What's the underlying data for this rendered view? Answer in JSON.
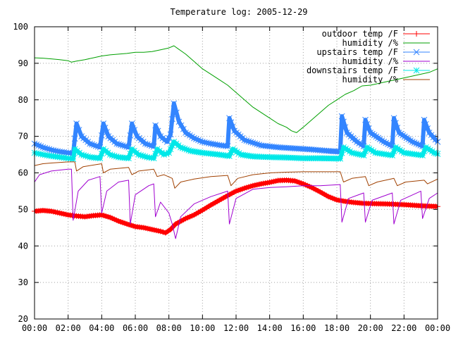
{
  "chart_data": {
    "type": "line",
    "title": "Temperature log: 2005-12-29",
    "xlabel": "",
    "ylabel": "",
    "xlim": [
      0,
      24
    ],
    "ylim": [
      20,
      100
    ],
    "grid": true,
    "legend_position": "top-right",
    "x_ticks": [
      "00:00",
      "02:00",
      "04:00",
      "06:00",
      "08:00",
      "10:00",
      "12:00",
      "14:00",
      "16:00",
      "18:00",
      "20:00",
      "22:00",
      "00:00"
    ],
    "y_ticks": [
      20,
      30,
      40,
      50,
      60,
      70,
      80,
      90,
      100
    ],
    "series": [
      {
        "name": "outdoor temp /F",
        "color": "#ff0000",
        "marker": "plus",
        "width": 6,
        "points": [
          [
            0,
            49.5
          ],
          [
            0.5,
            49.7
          ],
          [
            1,
            49.5
          ],
          [
            1.5,
            49
          ],
          [
            2,
            48.5
          ],
          [
            2.5,
            48.2
          ],
          [
            3,
            48
          ],
          [
            3.5,
            48.3
          ],
          [
            4,
            48.5
          ],
          [
            4.5,
            47.8
          ],
          [
            5,
            46.8
          ],
          [
            5.5,
            46
          ],
          [
            6,
            45.3
          ],
          [
            6.5,
            45
          ],
          [
            7,
            44.5
          ],
          [
            7.5,
            44
          ],
          [
            7.8,
            43.6
          ],
          [
            8.1,
            44.5
          ],
          [
            8.4,
            46
          ],
          [
            9,
            47.5
          ],
          [
            9.5,
            48.5
          ],
          [
            10,
            49.8
          ],
          [
            10.5,
            51.2
          ],
          [
            11,
            52.5
          ],
          [
            11.5,
            53.8
          ],
          [
            12,
            55
          ],
          [
            12.5,
            55.8
          ],
          [
            13,
            56.5
          ],
          [
            13.5,
            57
          ],
          [
            14,
            57.4
          ],
          [
            14.5,
            57.9
          ],
          [
            15,
            58
          ],
          [
            15.5,
            57.8
          ],
          [
            16,
            57
          ],
          [
            16.5,
            56
          ],
          [
            17,
            54.8
          ],
          [
            17.5,
            53.5
          ],
          [
            18,
            52.6
          ],
          [
            18.5,
            52.2
          ],
          [
            19,
            51.9
          ],
          [
            19.5,
            51.7
          ],
          [
            20,
            51.6
          ],
          [
            21,
            51.5
          ],
          [
            22,
            51.3
          ],
          [
            23,
            51
          ],
          [
            24,
            50.8
          ]
        ]
      },
      {
        "name": "humidity /%",
        "color": "#00a000",
        "points": [
          [
            0,
            91.5
          ],
          [
            0.5,
            91.4
          ],
          [
            1,
            91.2
          ],
          [
            1.5,
            91
          ],
          [
            2,
            90.7
          ],
          [
            2.2,
            90.3
          ],
          [
            2.5,
            90.6
          ],
          [
            3,
            91
          ],
          [
            3.5,
            91.5
          ],
          [
            4,
            92
          ],
          [
            4.5,
            92.3
          ],
          [
            5,
            92.5
          ],
          [
            5.5,
            92.7
          ],
          [
            6,
            93
          ],
          [
            6.5,
            93
          ],
          [
            7,
            93.2
          ],
          [
            7.5,
            93.7
          ],
          [
            8,
            94.2
          ],
          [
            8.3,
            94.8
          ],
          [
            8.6,
            93.8
          ],
          [
            9,
            92.5
          ],
          [
            9.5,
            90.5
          ],
          [
            10,
            88.5
          ],
          [
            10.5,
            87
          ],
          [
            11,
            85.5
          ],
          [
            11.5,
            84
          ],
          [
            12,
            82
          ],
          [
            12.5,
            80
          ],
          [
            13,
            78
          ],
          [
            13.5,
            76.5
          ],
          [
            14,
            75
          ],
          [
            14.5,
            73.5
          ],
          [
            15,
            72.5
          ],
          [
            15.3,
            71.5
          ],
          [
            15.6,
            71
          ],
          [
            16,
            72.5
          ],
          [
            16.5,
            74.5
          ],
          [
            17,
            76.5
          ],
          [
            17.5,
            78.5
          ],
          [
            18,
            80
          ],
          [
            18.5,
            81.5
          ],
          [
            19,
            82.5
          ],
          [
            19.5,
            83.8
          ],
          [
            20,
            84
          ],
          [
            20.5,
            84.5
          ],
          [
            21,
            85
          ],
          [
            21.5,
            85.5
          ],
          [
            22,
            86
          ],
          [
            22.5,
            86.5
          ],
          [
            23,
            87
          ],
          [
            23.5,
            87.5
          ],
          [
            24,
            88.5
          ]
        ]
      },
      {
        "name": "upstairs temp /F",
        "color": "#3385ff",
        "marker": "x",
        "width": 6,
        "points": [
          [
            0,
            68
          ],
          [
            0.5,
            67
          ],
          [
            1,
            66.3
          ],
          [
            1.5,
            65.8
          ],
          [
            2,
            65.5
          ],
          [
            2.3,
            65.3
          ],
          [
            2.5,
            73.5
          ],
          [
            2.8,
            70
          ],
          [
            3.3,
            68
          ],
          [
            3.9,
            67
          ],
          [
            4.1,
            73.5
          ],
          [
            4.4,
            70
          ],
          [
            4.9,
            68
          ],
          [
            5.6,
            67
          ],
          [
            5.8,
            73.5
          ],
          [
            6.1,
            70
          ],
          [
            6.6,
            68
          ],
          [
            7.1,
            67.2
          ],
          [
            7.2,
            73
          ],
          [
            7.5,
            70
          ],
          [
            7.9,
            68.5
          ],
          [
            8.1,
            70.5
          ],
          [
            8.3,
            79
          ],
          [
            8.6,
            74
          ],
          [
            9,
            71
          ],
          [
            9.5,
            69.5
          ],
          [
            10,
            68.5
          ],
          [
            10.5,
            68
          ],
          [
            11,
            67.6
          ],
          [
            11.5,
            67.3
          ],
          [
            11.6,
            75
          ],
          [
            11.9,
            71.5
          ],
          [
            12.5,
            69
          ],
          [
            13.5,
            67.5
          ],
          [
            14.5,
            67
          ],
          [
            15.5,
            66.7
          ],
          [
            16.5,
            66.4
          ],
          [
            17.5,
            66
          ],
          [
            18.2,
            65.8
          ],
          [
            18.3,
            75.5
          ],
          [
            18.6,
            71
          ],
          [
            19.2,
            68.5
          ],
          [
            19.6,
            67.3
          ],
          [
            19.7,
            74.5
          ],
          [
            20,
            71
          ],
          [
            20.8,
            68.5
          ],
          [
            21.3,
            67.3
          ],
          [
            21.4,
            75
          ],
          [
            21.7,
            71
          ],
          [
            22.5,
            68.5
          ],
          [
            23.1,
            67.3
          ],
          [
            23.2,
            74.5
          ],
          [
            23.5,
            71
          ],
          [
            24,
            68.5
          ]
        ]
      },
      {
        "name": "humidity /%",
        "color": "#a000d0",
        "points": [
          [
            0,
            57.5
          ],
          [
            0.3,
            59.5
          ],
          [
            1,
            60.5
          ],
          [
            2,
            61
          ],
          [
            2.2,
            61
          ],
          [
            2.3,
            47
          ],
          [
            2.6,
            55
          ],
          [
            3.2,
            58
          ],
          [
            3.9,
            59
          ],
          [
            4,
            49
          ],
          [
            4.3,
            55
          ],
          [
            5,
            57.5
          ],
          [
            5.6,
            58
          ],
          [
            5.7,
            46
          ],
          [
            6,
            54
          ],
          [
            6.8,
            56.5
          ],
          [
            7.1,
            57
          ],
          [
            7.2,
            48
          ],
          [
            7.5,
            52
          ],
          [
            8,
            49
          ],
          [
            8.2,
            46
          ],
          [
            8.4,
            42
          ],
          [
            8.7,
            48
          ],
          [
            9.5,
            51.5
          ],
          [
            10.5,
            53.5
          ],
          [
            11.5,
            55
          ],
          [
            11.6,
            46
          ],
          [
            12,
            53
          ],
          [
            13,
            55.5
          ],
          [
            14,
            56
          ],
          [
            15,
            56.2
          ],
          [
            16,
            56.5
          ],
          [
            17,
            56.5
          ],
          [
            18.2,
            56.8
          ],
          [
            18.3,
            46.5
          ],
          [
            18.7,
            53
          ],
          [
            19.6,
            54.5
          ],
          [
            19.7,
            46.5
          ],
          [
            20.1,
            52.5
          ],
          [
            21.3,
            54.5
          ],
          [
            21.4,
            46
          ],
          [
            21.8,
            52.5
          ],
          [
            23,
            55
          ],
          [
            23.1,
            47.5
          ],
          [
            23.5,
            53
          ],
          [
            24,
            54.5
          ]
        ]
      },
      {
        "name": "downstairs temp /F",
        "color": "#00e8e8",
        "marker": "star",
        "width": 6,
        "points": [
          [
            0,
            65.5
          ],
          [
            0.5,
            65
          ],
          [
            1,
            64.6
          ],
          [
            1.5,
            64.3
          ],
          [
            2,
            64
          ],
          [
            2.3,
            63.8
          ],
          [
            2.4,
            66.5
          ],
          [
            2.8,
            65
          ],
          [
            3.3,
            64.3
          ],
          [
            3.9,
            64
          ],
          [
            4.1,
            66.5
          ],
          [
            4.5,
            65
          ],
          [
            5,
            64.3
          ],
          [
            5.6,
            64
          ],
          [
            5.8,
            66.5
          ],
          [
            6.2,
            65
          ],
          [
            6.7,
            64.3
          ],
          [
            7.1,
            64
          ],
          [
            7.3,
            66.5
          ],
          [
            7.7,
            65
          ],
          [
            8,
            65.5
          ],
          [
            8.3,
            68.5
          ],
          [
            8.7,
            67
          ],
          [
            9.3,
            66
          ],
          [
            10,
            65.5
          ],
          [
            11,
            65
          ],
          [
            11.6,
            64.6
          ],
          [
            11.8,
            66.5
          ],
          [
            12.3,
            65
          ],
          [
            13,
            64.5
          ],
          [
            14,
            64.3
          ],
          [
            15,
            64.2
          ],
          [
            16,
            64
          ],
          [
            17,
            64
          ],
          [
            18.2,
            63.9
          ],
          [
            18.4,
            67
          ],
          [
            18.9,
            65.5
          ],
          [
            19.6,
            64.8
          ],
          [
            19.8,
            67
          ],
          [
            20.3,
            65.5
          ],
          [
            21.3,
            64.8
          ],
          [
            21.5,
            67
          ],
          [
            22,
            65.5
          ],
          [
            23.1,
            64.8
          ],
          [
            23.3,
            67
          ],
          [
            23.8,
            65.5
          ],
          [
            24,
            65.2
          ]
        ]
      },
      {
        "name": "humidity /%",
        "color": "#a04000",
        "points": [
          [
            0,
            62
          ],
          [
            0.5,
            62.5
          ],
          [
            1,
            62.7
          ],
          [
            2,
            63
          ],
          [
            2.4,
            63
          ],
          [
            2.5,
            60.5
          ],
          [
            2.9,
            61.7
          ],
          [
            4,
            62.5
          ],
          [
            4.1,
            60
          ],
          [
            4.5,
            61
          ],
          [
            5.6,
            61.5
          ],
          [
            5.8,
            59.5
          ],
          [
            6.2,
            60.5
          ],
          [
            7.1,
            61
          ],
          [
            7.3,
            59
          ],
          [
            7.7,
            59.5
          ],
          [
            8.2,
            58.5
          ],
          [
            8.35,
            55.8
          ],
          [
            8.7,
            57.5
          ],
          [
            9.5,
            58.3
          ],
          [
            10.5,
            59
          ],
          [
            11.5,
            59.3
          ],
          [
            11.7,
            56.5
          ],
          [
            12.1,
            58.5
          ],
          [
            13,
            59.5
          ],
          [
            14,
            60
          ],
          [
            15,
            60.2
          ],
          [
            16,
            60.3
          ],
          [
            17,
            60.3
          ],
          [
            18.2,
            60.3
          ],
          [
            18.4,
            57.5
          ],
          [
            18.9,
            58.5
          ],
          [
            19.7,
            59
          ],
          [
            19.9,
            56.5
          ],
          [
            20.4,
            57.5
          ],
          [
            21.4,
            58.5
          ],
          [
            21.6,
            56.5
          ],
          [
            22.1,
            57.5
          ],
          [
            23.2,
            58
          ],
          [
            23.4,
            57
          ],
          [
            24,
            58.3
          ]
        ]
      }
    ]
  }
}
